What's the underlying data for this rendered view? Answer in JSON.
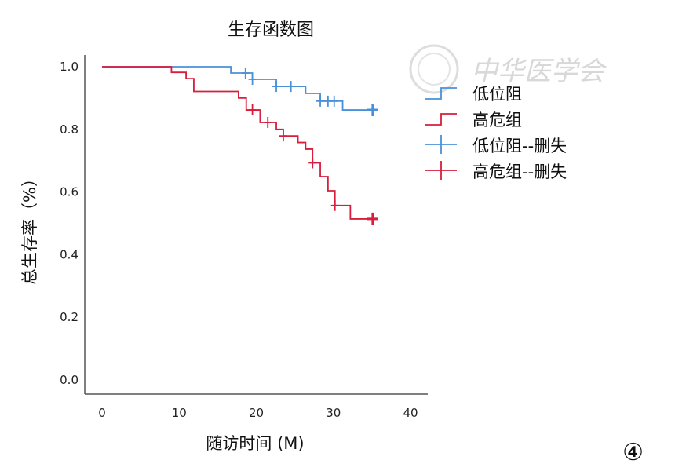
{
  "chart_data": {
    "type": "line",
    "subtype": "kaplan-meier step",
    "title": "生存函数图",
    "xlabel": "随访时间 (M)",
    "ylabel": "总生存率（%）",
    "xlim": [
      0,
      40
    ],
    "ylim": [
      0,
      1.0
    ],
    "xticks": [
      "0",
      "10",
      "20",
      "30",
      "40"
    ],
    "yticks": [
      "0.0",
      "0.2",
      "0.4",
      "0.6",
      "0.8",
      "1.0"
    ],
    "legend_position": "right",
    "series": [
      {
        "name": "低位阻",
        "color": "#4a90d9",
        "steps": [
          [
            0,
            1.0
          ],
          [
            16.7,
            0.98
          ],
          [
            19.5,
            0.96
          ],
          [
            22.6,
            0.937
          ],
          [
            26.4,
            0.915
          ],
          [
            28.3,
            0.89
          ],
          [
            31.2,
            0.862
          ]
        ],
        "end": 35.1,
        "censor_name": "低位阻--删失",
        "censored": [
          18.6,
          19.5,
          22.6,
          24.5,
          28.3,
          29.3,
          30.1,
          35.1
        ]
      },
      {
        "name": "高危组",
        "color": "#d81e3c",
        "steps": [
          [
            0,
            1.0
          ],
          [
            9.0,
            0.982
          ],
          [
            10.9,
            0.962
          ],
          [
            11.9,
            0.921
          ],
          [
            17.7,
            0.9
          ],
          [
            18.7,
            0.862
          ],
          [
            20.5,
            0.822
          ],
          [
            22.6,
            0.8
          ],
          [
            23.5,
            0.779
          ],
          [
            25.4,
            0.758
          ],
          [
            26.4,
            0.737
          ],
          [
            27.3,
            0.693
          ],
          [
            28.3,
            0.649
          ],
          [
            29.3,
            0.604
          ],
          [
            30.2,
            0.557
          ],
          [
            32.2,
            0.514
          ]
        ],
        "end": 35.1,
        "censor_name": "高危组--删失",
        "censored": [
          19.5,
          21.5,
          23.5,
          27.3,
          30.2,
          35.1
        ]
      }
    ]
  },
  "watermark": "中华医学会",
  "panel_label": "④"
}
